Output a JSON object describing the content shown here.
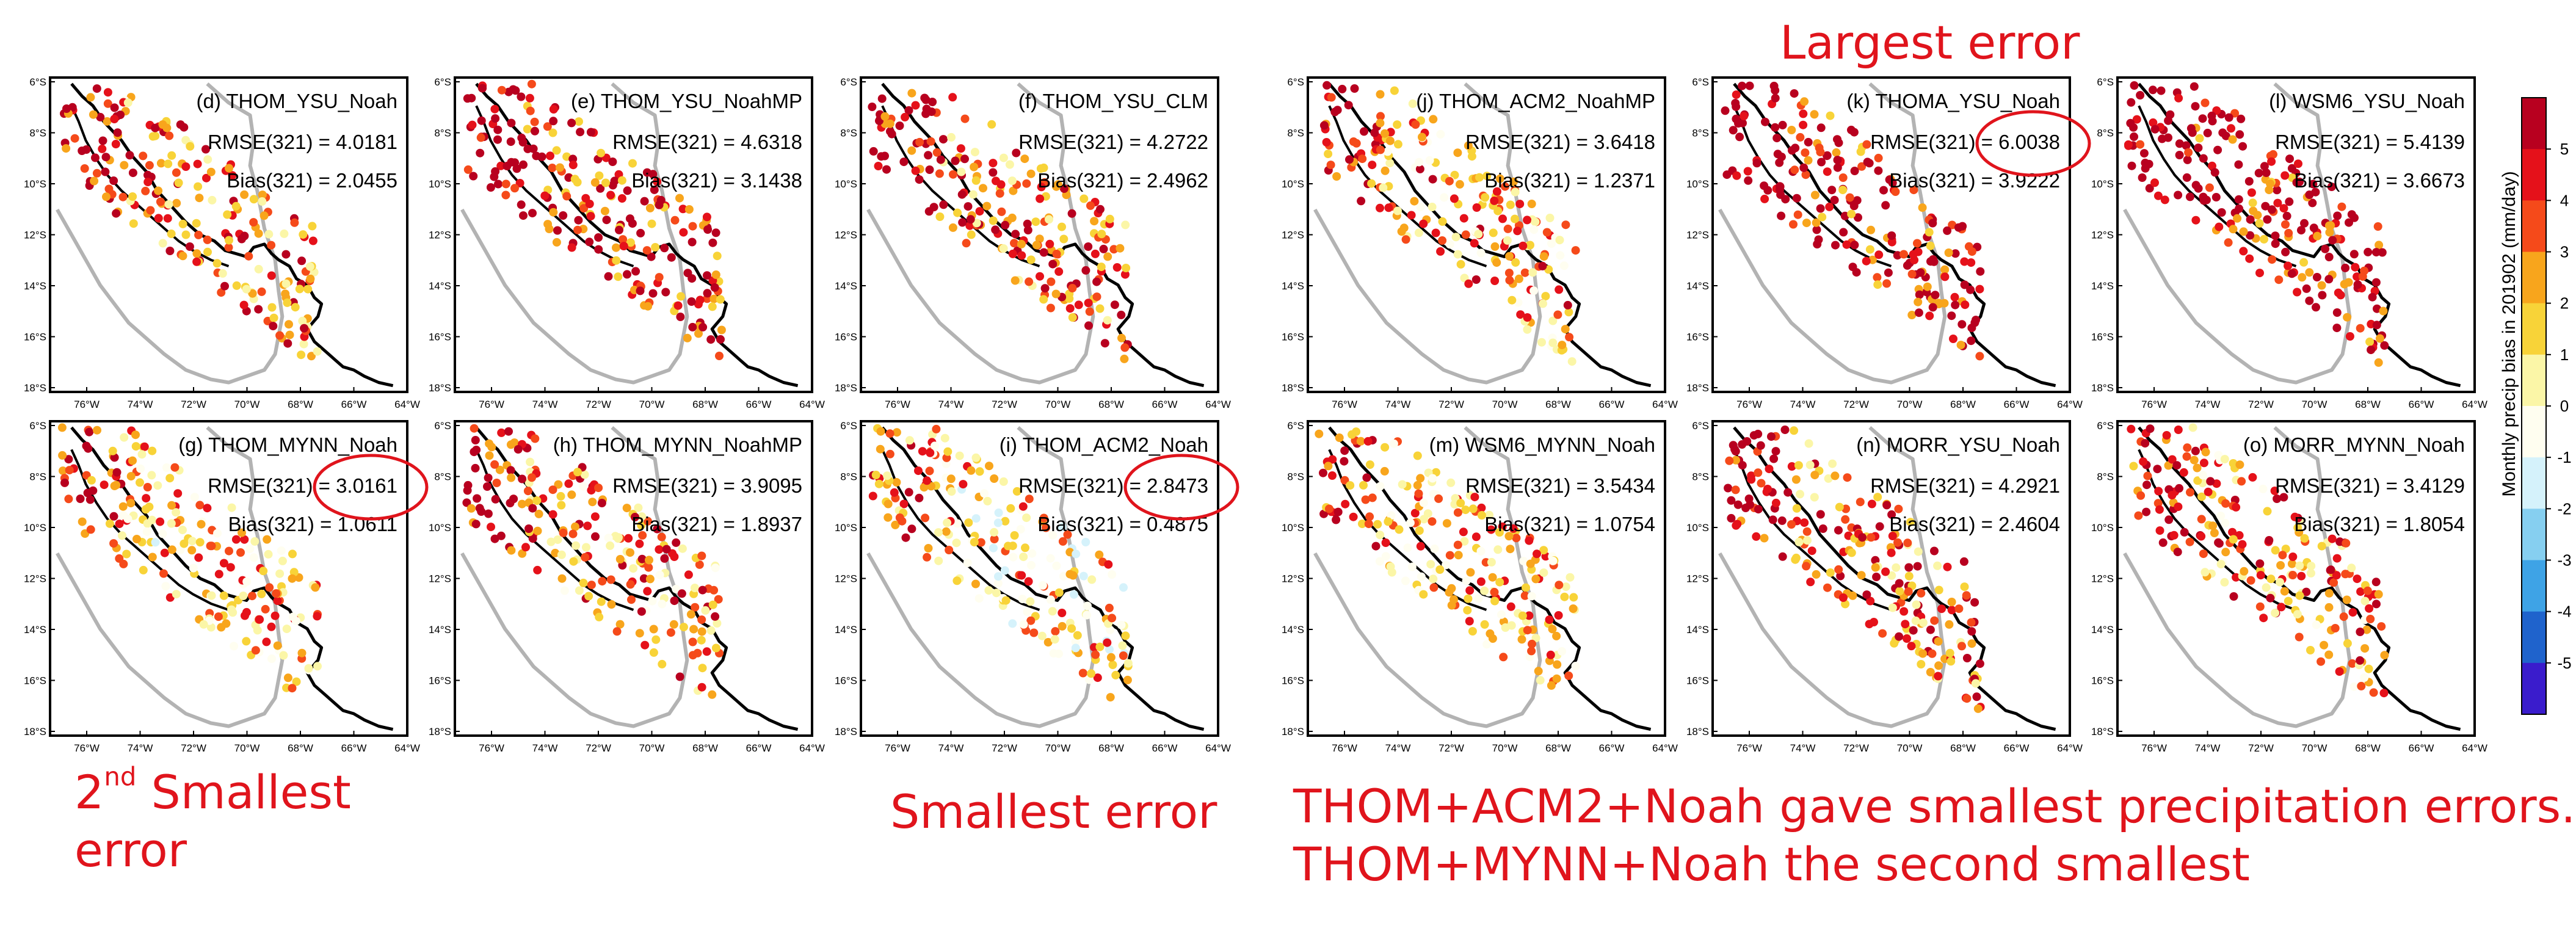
{
  "chart_data": {
    "type": "scatter",
    "description_of_marks": "station dots over a regional map outline",
    "panels": [
      {
        "id": "d",
        "title": "(d) THOM_YSU_Noah",
        "rmse_label": "RMSE(321) = 4.0181",
        "bias_label": "Bias(321) = 2.0455",
        "rmse": 4.0181,
        "bias": 2.0455,
        "highlighted": false
      },
      {
        "id": "e",
        "title": "(e) THOM_YSU_NoahMP",
        "rmse_label": "RMSE(321) = 4.6318",
        "bias_label": "Bias(321) = 3.1438",
        "rmse": 4.6318,
        "bias": 3.1438,
        "highlighted": false
      },
      {
        "id": "f",
        "title": "(f) THOM_YSU_CLM",
        "rmse_label": "RMSE(321) = 4.2722",
        "bias_label": "Bias(321) = 2.4962",
        "rmse": 4.2722,
        "bias": 2.4962,
        "highlighted": false
      },
      {
        "id": "j",
        "title": "(j) THOM_ACM2_NoahMP",
        "rmse_label": "RMSE(321) = 3.6418",
        "bias_label": "Bias(321) = 1.2371",
        "rmse": 3.6418,
        "bias": 1.2371,
        "highlighted": false
      },
      {
        "id": "k",
        "title": "(k) THOMA_YSU_Noah",
        "rmse_label": "RMSE(321) = 6.0038",
        "bias_label": "Bias(321) = 3.9222",
        "rmse": 6.0038,
        "bias": 3.9222,
        "highlighted": true
      },
      {
        "id": "l",
        "title": "(l) WSM6_YSU_Noah",
        "rmse_label": "RMSE(321) = 5.4139",
        "bias_label": "Bias(321) = 3.6673",
        "rmse": 5.4139,
        "bias": 3.6673,
        "highlighted": false
      },
      {
        "id": "g",
        "title": "(g) THOM_MYNN_Noah",
        "rmse_label": "RMSE(321) = 3.0161",
        "bias_label": "Bias(321) = 1.0611",
        "rmse": 3.0161,
        "bias": 1.0611,
        "highlighted": true
      },
      {
        "id": "h",
        "title": "(h) THOM_MYNN_NoahMP",
        "rmse_label": "RMSE(321) = 3.9095",
        "bias_label": "Bias(321) = 1.8937",
        "rmse": 3.9095,
        "bias": 1.8937,
        "highlighted": false
      },
      {
        "id": "i",
        "title": "(i) THOM_ACM2_Noah",
        "rmse_label": "RMSE(321) = 2.8473",
        "bias_label": "Bias(321) = 0.4875",
        "rmse": 2.8473,
        "bias": 0.4875,
        "highlighted": true
      },
      {
        "id": "m",
        "title": "(m) WSM6_MYNN_Noah",
        "rmse_label": "RMSE(321) = 3.5434",
        "bias_label": "Bias(321) = 1.0754",
        "rmse": 3.5434,
        "bias": 1.0754,
        "highlighted": false
      },
      {
        "id": "n",
        "title": "(n) MORR_YSU_Noah",
        "rmse_label": "RMSE(321) = 4.2921",
        "bias_label": "Bias(321) = 2.4604",
        "rmse": 4.2921,
        "bias": 2.4604,
        "highlighted": false
      },
      {
        "id": "o",
        "title": "(o) MORR_MYNN_Noah",
        "rmse_label": "RMSE(321) = 3.4129",
        "bias_label": "Bias(321) = 1.8054",
        "rmse": 3.4129,
        "bias": 1.8054,
        "highlighted": false
      }
    ],
    "xticks": [
      "76°W",
      "74°W",
      "72°W",
      "70°W",
      "68°W",
      "66°W",
      "64°W"
    ],
    "yticks": [
      "6°S",
      "8°S",
      "10°S",
      "12°S",
      "14°S",
      "16°S",
      "18°S"
    ],
    "colorbar": {
      "title": "Monthly precip bias in 201902 (mm/day)",
      "tick_labels": [
        "5",
        "4",
        "3",
        "2",
        "1",
        "0",
        "-1",
        "-2",
        "-3",
        "-4",
        "-5"
      ],
      "colors": [
        "#b8001f",
        "#e5111a",
        "#f54a1a",
        "#f8a51c",
        "#f8d338",
        "#fbf6a7",
        "#fffef0",
        "#d5f2fb",
        "#86cff0",
        "#3ea3e6",
        "#1f63cc",
        "#3a1ccc"
      ]
    }
  },
  "annotations": {
    "largest": "Largest error",
    "second_smallest_line1_num": "2",
    "second_smallest_line1_sup": "nd",
    "second_smallest_line1_rest": " Smallest",
    "second_smallest_line2": "error",
    "smallest": "Smallest error",
    "summary_line1": "THOM+ACM2+Noah gave smallest precipitation errors.",
    "summary_line2": "THOM+MYNN+Noah the second smallest"
  },
  "colors": {
    "annotation": "#e0141c",
    "coast": "#000000",
    "andes": "#b3b3b3"
  }
}
